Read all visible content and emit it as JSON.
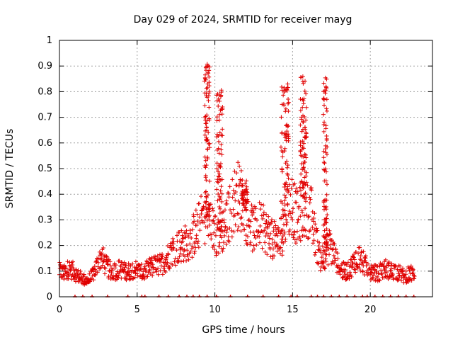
{
  "chart_data": {
    "type": "scatter",
    "title": "Day 029 of 2024, SRMTID for receiver mayg",
    "xlabel": "GPS time / hours",
    "ylabel": "SRMTID / TECUs",
    "xlim": [
      0,
      24
    ],
    "ylim": [
      0,
      1
    ],
    "xticks": [
      0,
      5,
      10,
      15,
      20
    ],
    "yticks": [
      0,
      0.1,
      0.2,
      0.3,
      0.4,
      0.5,
      0.6,
      0.7,
      0.8,
      0.9,
      1
    ],
    "ytick_labels": [
      "0",
      "0.1",
      "0.2",
      "0.3",
      "0.4",
      "0.5",
      "0.6",
      "0.7",
      "0.8",
      "0.9",
      "1"
    ],
    "xtick_labels": [
      "0",
      "5",
      "10",
      "15",
      "20"
    ],
    "grid": true,
    "marker": "+",
    "series_color": "#e00000",
    "envelope": {
      "x": [
        0.0,
        0.3,
        0.6,
        0.9,
        1.2,
        1.5,
        1.8,
        2.1,
        2.4,
        2.7,
        3.0,
        3.3,
        3.6,
        3.9,
        4.2,
        4.5,
        4.8,
        5.1,
        5.4,
        5.7,
        6.0,
        6.3,
        6.6,
        6.9,
        7.2,
        7.5,
        7.8,
        8.1,
        8.4,
        8.7,
        9.0,
        9.3,
        9.6,
        9.9,
        10.2,
        10.5,
        10.8,
        11.1,
        11.4,
        11.7,
        12.0,
        12.3,
        12.6,
        12.9,
        13.2,
        13.5,
        13.8,
        14.1,
        14.4,
        14.7,
        15.0,
        15.3,
        15.6,
        15.9,
        16.2,
        16.5,
        16.8,
        17.1,
        17.4,
        17.7,
        18.0,
        18.3,
        18.6,
        18.9,
        19.2,
        19.5,
        19.8,
        20.1,
        20.4,
        20.7,
        21.0,
        21.3,
        21.6,
        21.9,
        22.2,
        22.5,
        22.8
      ],
      "y": [
        0.1,
        0.09,
        0.11,
        0.1,
        0.08,
        0.07,
        0.06,
        0.08,
        0.12,
        0.16,
        0.12,
        0.1,
        0.1,
        0.11,
        0.1,
        0.1,
        0.11,
        0.1,
        0.09,
        0.11,
        0.12,
        0.12,
        0.13,
        0.15,
        0.18,
        0.19,
        0.2,
        0.21,
        0.22,
        0.25,
        0.28,
        0.32,
        0.3,
        0.26,
        0.24,
        0.26,
        0.3,
        0.35,
        0.4,
        0.38,
        0.32,
        0.27,
        0.26,
        0.28,
        0.26,
        0.24,
        0.22,
        0.21,
        0.26,
        0.35,
        0.36,
        0.3,
        0.34,
        0.36,
        0.32,
        0.22,
        0.15,
        0.17,
        0.2,
        0.16,
        0.11,
        0.1,
        0.1,
        0.13,
        0.16,
        0.14,
        0.11,
        0.1,
        0.09,
        0.1,
        0.11,
        0.1,
        0.1,
        0.09,
        0.08,
        0.09,
        0.09
      ],
      "spikes": [
        {
          "x": 9.5,
          "peak": 0.91,
          "width": 0.35
        },
        {
          "x": 10.3,
          "peak": 0.81,
          "width": 0.4
        },
        {
          "x": 14.5,
          "peak": 0.83,
          "width": 0.5
        },
        {
          "x": 15.7,
          "peak": 0.87,
          "width": 0.4
        },
        {
          "x": 17.1,
          "peak": 0.87,
          "width": 0.25
        },
        {
          "x": 11.9,
          "peak": 0.46,
          "width": 0.4
        }
      ]
    },
    "baseline_points_x": [
      1.0,
      1.5,
      2.1,
      3.1,
      4.4,
      5.3,
      5.5,
      6.4,
      7.0,
      7.7,
      8.2,
      8.6,
      9.0,
      9.5,
      10.1,
      11.0,
      12.1,
      13.1,
      14.1,
      14.9,
      15.3,
      16.2,
      16.6,
      17.0,
      17.5,
      18.0,
      18.5,
      19.0,
      19.5,
      19.8,
      20.3,
      20.8,
      21.3,
      21.8,
      22.3,
      22.8
    ]
  }
}
